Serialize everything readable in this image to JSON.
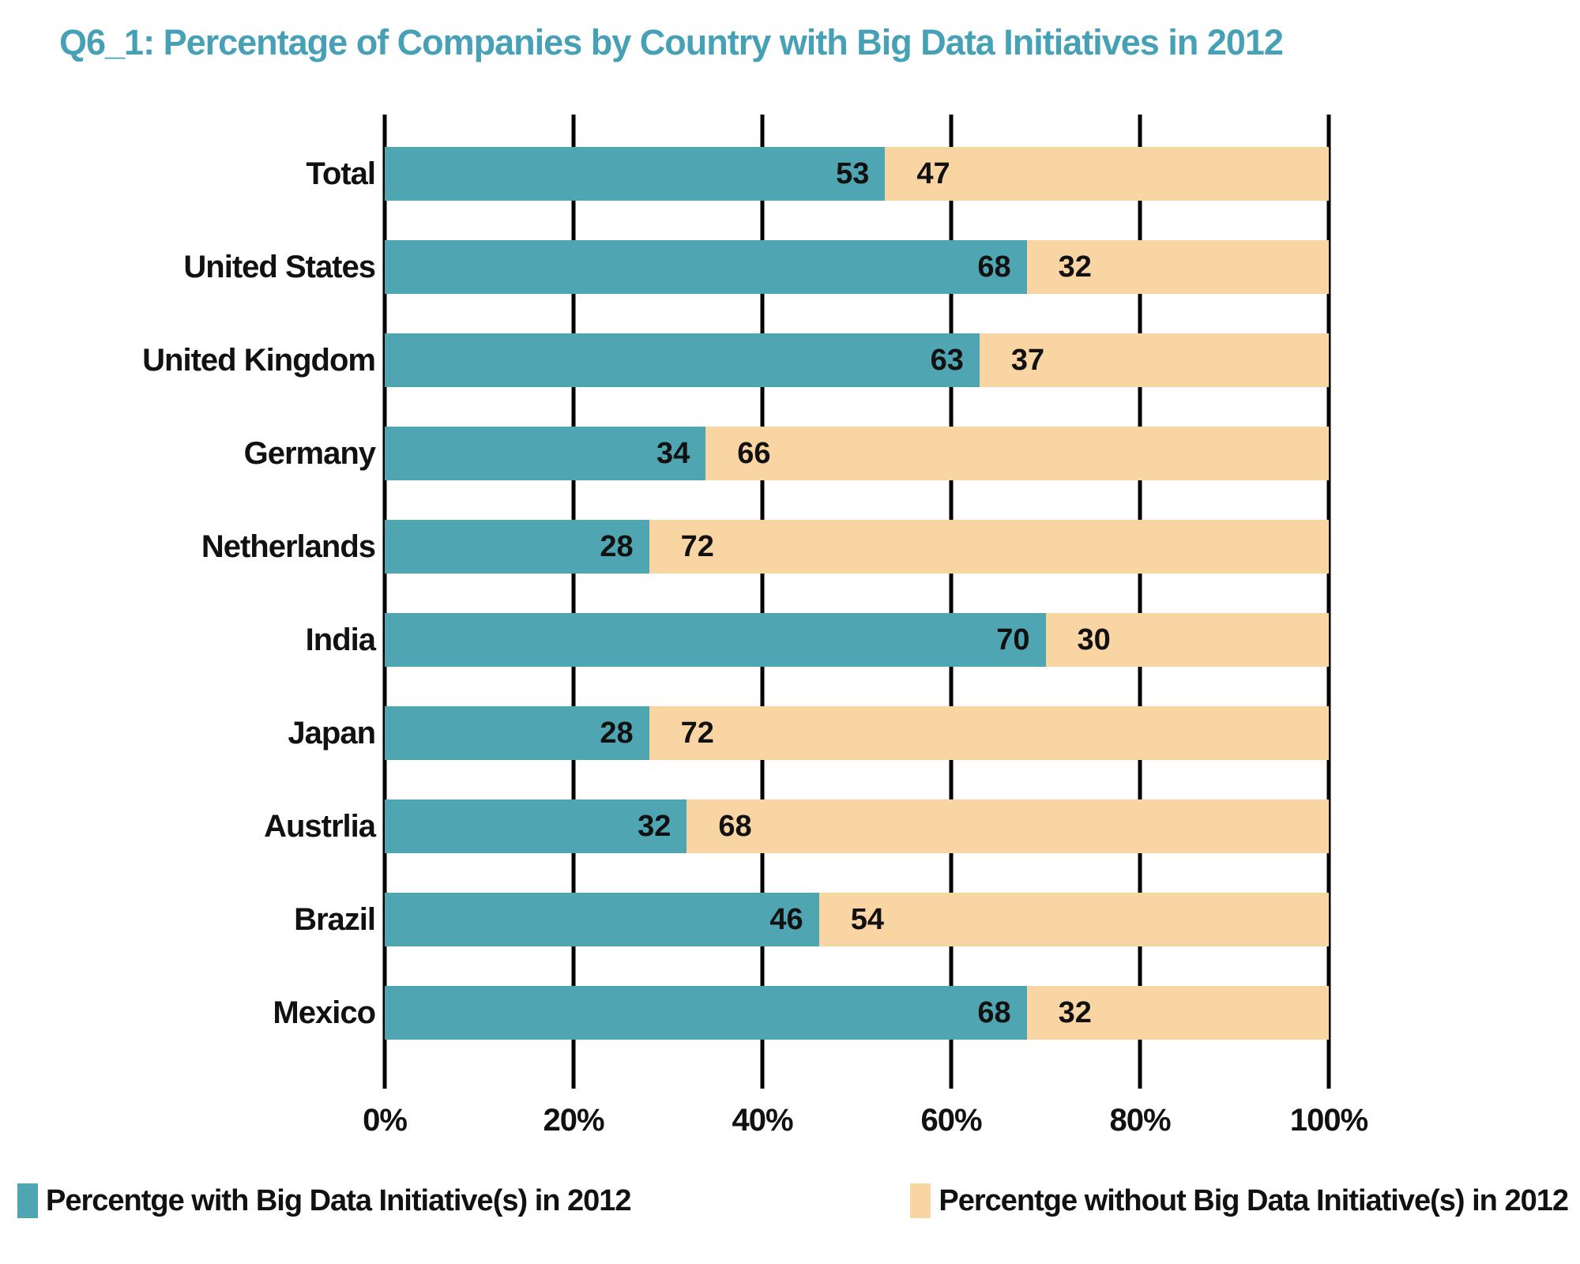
{
  "title": {
    "text": "Q6_1: Percentage of Companies by Country  with Big Data Initiatives in 2012",
    "color": "#46A1B7"
  },
  "colors": {
    "with_series": "#50A5B2",
    "without_series": "#FAD5A4",
    "gridline": "#000000",
    "value_text": "#111111"
  },
  "chart_data": {
    "type": "bar",
    "orientation": "horizontal",
    "stacked": true,
    "title": "Q6_1: Percentage of Companies by Country  with Big Data Initiatives in 2012",
    "categories": [
      "Total",
      "United States",
      "United Kingdom",
      "Germany",
      "Netherlands",
      "India",
      "Japan",
      "Austrlia",
      "Brazil",
      "Mexico"
    ],
    "series": [
      {
        "name": "Percentge with Big Data Initiative(s) in 2012",
        "color": "#50A5B2",
        "values": [
          53,
          68,
          63,
          34,
          28,
          70,
          28,
          32,
          46,
          68
        ]
      },
      {
        "name": "Percentge without Big Data Initiative(s) in 2012",
        "color": "#FAD5A4",
        "values": [
          47,
          32,
          37,
          66,
          72,
          30,
          72,
          68,
          54,
          32
        ]
      }
    ],
    "x_ticks": [
      {
        "label": "0%",
        "value": 0
      },
      {
        "label": "20%",
        "value": 20
      },
      {
        "label": "40%",
        "value": 40
      },
      {
        "label": "60%",
        "value": 60
      },
      {
        "label": "80%",
        "value": 80
      },
      {
        "label": "100%",
        "value": 100
      }
    ],
    "xlim": [
      0,
      100
    ],
    "grid": true,
    "value_labels": true,
    "legend_position": "bottom"
  }
}
